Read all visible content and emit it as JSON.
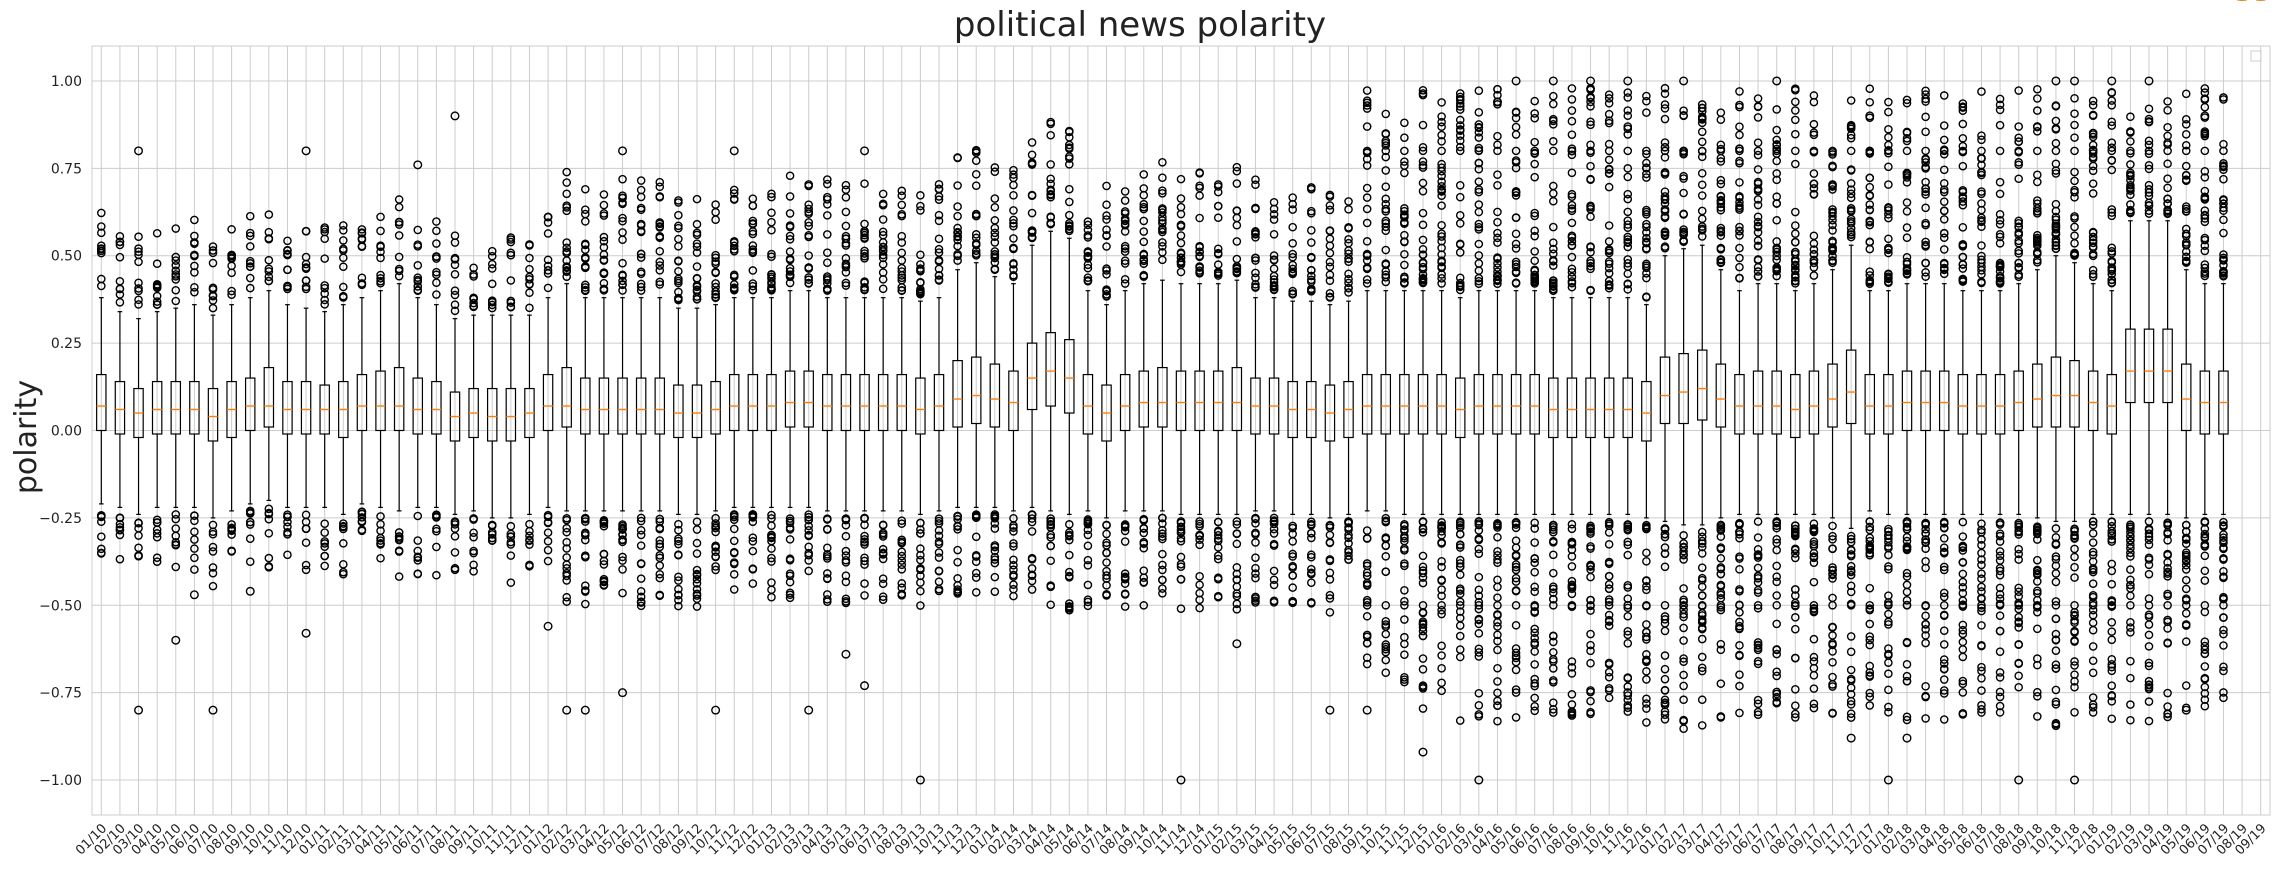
{
  "chart_data": {
    "type": "box",
    "title": "political news polarity",
    "xlabel": "",
    "ylabel": "polarity",
    "ylim": [
      -1.1,
      1.1
    ],
    "yticks": [
      1.0,
      0.75,
      0.5,
      0.25,
      0.0,
      -0.25,
      -0.5,
      -0.75,
      -1.0
    ],
    "ytick_labels": [
      "1.00",
      "0.75",
      "0.50",
      "0.25",
      "0.00",
      "−0.25",
      "−0.50",
      "−0.75",
      "−1.00"
    ],
    "grid": true,
    "legend": "top-right (empty)",
    "categories": [
      "01/10",
      "02/10",
      "03/10",
      "04/10",
      "05/10",
      "06/10",
      "07/10",
      "08/10",
      "09/10",
      "10/10",
      "11/10",
      "12/10",
      "01/11",
      "02/11",
      "03/11",
      "04/11",
      "05/11",
      "06/11",
      "07/11",
      "08/11",
      "09/11",
      "10/11",
      "11/11",
      "12/11",
      "01/12",
      "02/12",
      "03/12",
      "04/12",
      "05/12",
      "06/12",
      "07/12",
      "08/12",
      "09/12",
      "10/12",
      "11/12",
      "12/12",
      "01/13",
      "02/13",
      "03/13",
      "04/13",
      "05/13",
      "06/13",
      "07/13",
      "08/13",
      "09/13",
      "10/13",
      "11/13",
      "12/13",
      "01/14",
      "02/14",
      "03/14",
      "04/14",
      "05/14",
      "06/14",
      "07/14",
      "08/14",
      "09/14",
      "10/14",
      "11/14",
      "12/14",
      "01/15",
      "02/15",
      "03/15",
      "04/15",
      "05/15",
      "06/15",
      "07/15",
      "08/15",
      "09/15",
      "10/15",
      "11/15",
      "12/15",
      "01/16",
      "02/16",
      "03/16",
      "04/16",
      "05/16",
      "06/16",
      "07/16",
      "08/16",
      "09/16",
      "10/16",
      "11/16",
      "12/16",
      "01/17",
      "02/17",
      "03/17",
      "04/17",
      "05/17",
      "06/17",
      "07/17",
      "08/17",
      "09/17",
      "10/17",
      "11/17",
      "12/17",
      "01/18",
      "02/18",
      "03/18",
      "04/18",
      "05/18",
      "06/18",
      "07/18",
      "08/18",
      "09/18",
      "10/18",
      "11/18",
      "12/18",
      "01/19",
      "02/19",
      "03/19",
      "04/19",
      "05/19",
      "06/19",
      "07/19",
      "08/19",
      "09/19"
    ],
    "medians": [
      0.07,
      0.06,
      0.05,
      0.06,
      0.06,
      0.06,
      0.04,
      0.06,
      0.07,
      0.07,
      0.06,
      0.06,
      0.06,
      0.06,
      0.07,
      0.07,
      0.07,
      0.06,
      0.06,
      0.04,
      0.05,
      0.04,
      0.04,
      0.05,
      0.07,
      0.07,
      0.06,
      0.06,
      0.06,
      0.06,
      0.06,
      0.05,
      0.05,
      0.06,
      0.07,
      0.07,
      0.07,
      0.08,
      0.08,
      0.07,
      0.07,
      0.07,
      0.07,
      0.07,
      0.06,
      0.07,
      0.09,
      0.1,
      0.09,
      0.08,
      0.15,
      0.17,
      0.15,
      0.07,
      0.05,
      0.07,
      0.08,
      0.08,
      0.08,
      0.08,
      0.08,
      0.08,
      0.07,
      0.07,
      0.06,
      0.06,
      0.05,
      0.06,
      0.07,
      0.07,
      0.07,
      0.07,
      0.07,
      0.06,
      0.07,
      0.07,
      0.07,
      0.07,
      0.06,
      0.06,
      0.06,
      0.06,
      0.06,
      0.05,
      0.1,
      0.11,
      0.12,
      0.09,
      0.07,
      0.07,
      0.07,
      0.06,
      0.07,
      0.09,
      0.11,
      0.07,
      0.07,
      0.08,
      0.08,
      0.08,
      0.07,
      0.07,
      0.07,
      0.08,
      0.09,
      0.1,
      0.1,
      0.08,
      0.07,
      0.17,
      0.17,
      0.17,
      0.09,
      0.08,
      0.08
    ],
    "q1": [
      0.0,
      -0.01,
      -0.02,
      -0.01,
      -0.01,
      -0.01,
      -0.03,
      -0.02,
      0.0,
      0.01,
      -0.01,
      -0.01,
      -0.01,
      -0.02,
      0.0,
      0.0,
      0.0,
      -0.01,
      -0.01,
      -0.03,
      -0.02,
      -0.03,
      -0.03,
      -0.02,
      0.0,
      0.01,
      -0.01,
      -0.01,
      -0.01,
      -0.01,
      -0.01,
      -0.02,
      -0.02,
      -0.01,
      0.0,
      0.0,
      0.0,
      0.01,
      0.01,
      0.0,
      0.0,
      0.0,
      0.0,
      0.0,
      -0.01,
      0.0,
      0.01,
      0.02,
      0.01,
      0.0,
      0.06,
      0.07,
      0.05,
      -0.01,
      -0.03,
      0.0,
      0.01,
      0.01,
      0.0,
      0.0,
      0.0,
      0.0,
      -0.01,
      -0.01,
      -0.02,
      -0.02,
      -0.03,
      -0.02,
      -0.01,
      -0.01,
      -0.01,
      -0.01,
      -0.01,
      -0.02,
      -0.01,
      -0.01,
      -0.01,
      -0.01,
      -0.02,
      -0.02,
      -0.02,
      -0.02,
      -0.02,
      -0.03,
      0.02,
      0.02,
      0.03,
      0.01,
      -0.01,
      -0.01,
      -0.01,
      -0.02,
      -0.01,
      0.01,
      0.02,
      -0.01,
      -0.01,
      0.0,
      0.0,
      0.0,
      -0.01,
      -0.01,
      -0.01,
      0.0,
      0.01,
      0.01,
      0.01,
      0.0,
      -0.01,
      0.08,
      0.08,
      0.08,
      0.0,
      -0.01,
      -0.01
    ],
    "q3": [
      0.16,
      0.14,
      0.12,
      0.14,
      0.14,
      0.14,
      0.12,
      0.14,
      0.15,
      0.18,
      0.14,
      0.14,
      0.13,
      0.14,
      0.16,
      0.17,
      0.18,
      0.15,
      0.14,
      0.11,
      0.12,
      0.12,
      0.12,
      0.12,
      0.16,
      0.18,
      0.15,
      0.15,
      0.15,
      0.15,
      0.15,
      0.13,
      0.13,
      0.14,
      0.16,
      0.16,
      0.16,
      0.17,
      0.17,
      0.16,
      0.16,
      0.16,
      0.16,
      0.16,
      0.15,
      0.16,
      0.2,
      0.21,
      0.19,
      0.17,
      0.25,
      0.28,
      0.26,
      0.16,
      0.13,
      0.16,
      0.17,
      0.18,
      0.17,
      0.17,
      0.17,
      0.18,
      0.15,
      0.15,
      0.14,
      0.14,
      0.13,
      0.14,
      0.16,
      0.16,
      0.16,
      0.16,
      0.16,
      0.15,
      0.16,
      0.16,
      0.16,
      0.16,
      0.15,
      0.15,
      0.15,
      0.15,
      0.15,
      0.14,
      0.21,
      0.22,
      0.23,
      0.19,
      0.16,
      0.17,
      0.17,
      0.16,
      0.17,
      0.19,
      0.23,
      0.16,
      0.16,
      0.17,
      0.17,
      0.17,
      0.16,
      0.16,
      0.16,
      0.17,
      0.19,
      0.21,
      0.2,
      0.17,
      0.16,
      0.29,
      0.29,
      0.29,
      0.19,
      0.17,
      0.17
    ],
    "whisker_low": [
      -0.21,
      -0.22,
      -0.24,
      -0.22,
      -0.22,
      -0.22,
      -0.25,
      -0.23,
      -0.21,
      -0.2,
      -0.22,
      -0.22,
      -0.22,
      -0.24,
      -0.21,
      -0.22,
      -0.23,
      -0.22,
      -0.22,
      -0.24,
      -0.23,
      -0.25,
      -0.25,
      -0.24,
      -0.22,
      -0.23,
      -0.23,
      -0.23,
      -0.23,
      -0.23,
      -0.23,
      -0.24,
      -0.24,
      -0.23,
      -0.22,
      -0.22,
      -0.22,
      -0.22,
      -0.22,
      -0.23,
      -0.23,
      -0.23,
      -0.23,
      -0.23,
      -0.24,
      -0.23,
      -0.22,
      -0.22,
      -0.22,
      -0.23,
      -0.22,
      -0.23,
      -0.24,
      -0.23,
      -0.25,
      -0.23,
      -0.23,
      -0.23,
      -0.24,
      -0.24,
      -0.24,
      -0.24,
      -0.23,
      -0.23,
      -0.24,
      -0.24,
      -0.25,
      -0.24,
      -0.23,
      -0.23,
      -0.24,
      -0.24,
      -0.24,
      -0.24,
      -0.24,
      -0.24,
      -0.24,
      -0.24,
      -0.24,
      -0.24,
      -0.24,
      -0.24,
      -0.24,
      -0.25,
      -0.26,
      -0.27,
      -0.27,
      -0.25,
      -0.24,
      -0.24,
      -0.24,
      -0.24,
      -0.24,
      -0.25,
      -0.28,
      -0.23,
      -0.24,
      -0.24,
      -0.24,
      -0.24,
      -0.24,
      -0.24,
      -0.24,
      -0.24,
      -0.25,
      -0.26,
      -0.26,
      -0.24,
      -0.24,
      -0.24,
      -0.24,
      -0.24,
      -0.25,
      -0.24,
      -0.24
    ],
    "whisker_high": [
      0.38,
      0.34,
      0.32,
      0.34,
      0.35,
      0.36,
      0.33,
      0.36,
      0.38,
      0.4,
      0.36,
      0.35,
      0.34,
      0.36,
      0.38,
      0.4,
      0.42,
      0.38,
      0.36,
      0.32,
      0.33,
      0.33,
      0.33,
      0.33,
      0.38,
      0.42,
      0.38,
      0.38,
      0.38,
      0.38,
      0.38,
      0.35,
      0.35,
      0.36,
      0.38,
      0.38,
      0.38,
      0.4,
      0.4,
      0.38,
      0.38,
      0.38,
      0.38,
      0.38,
      0.37,
      0.38,
      0.46,
      0.48,
      0.44,
      0.42,
      0.53,
      0.57,
      0.55,
      0.4,
      0.36,
      0.4,
      0.42,
      0.43,
      0.42,
      0.42,
      0.42,
      0.43,
      0.38,
      0.38,
      0.37,
      0.37,
      0.36,
      0.37,
      0.4,
      0.4,
      0.4,
      0.4,
      0.4,
      0.38,
      0.4,
      0.4,
      0.4,
      0.4,
      0.38,
      0.38,
      0.38,
      0.38,
      0.38,
      0.36,
      0.5,
      0.52,
      0.53,
      0.46,
      0.4,
      0.42,
      0.42,
      0.4,
      0.42,
      0.46,
      0.53,
      0.4,
      0.4,
      0.42,
      0.42,
      0.42,
      0.4,
      0.4,
      0.4,
      0.42,
      0.46,
      0.5,
      0.48,
      0.42,
      0.4,
      0.6,
      0.6,
      0.6,
      0.46,
      0.42,
      0.42
    ],
    "outlier_density": [
      1,
      1,
      1,
      1,
      1,
      1,
      1,
      1,
      1,
      1,
      1,
      1,
      1,
      1,
      1,
      1,
      1,
      1,
      1,
      1,
      1,
      1,
      1,
      1,
      1,
      2,
      2,
      2,
      2,
      2,
      2,
      2,
      2,
      2,
      2,
      2,
      2,
      2,
      2,
      2,
      2,
      2,
      2,
      2,
      2,
      2,
      2,
      2,
      2,
      2,
      2,
      2,
      2,
      2,
      2,
      2,
      2,
      2,
      2,
      2,
      2,
      2,
      2,
      2,
      2,
      2,
      2,
      2,
      3,
      3,
      3,
      4,
      4,
      4,
      4,
      4,
      4,
      4,
      4,
      4,
      4,
      4,
      4,
      4,
      4,
      4,
      4,
      4,
      4,
      4,
      4,
      4,
      4,
      4,
      4,
      4,
      4,
      4,
      4,
      4,
      4,
      4,
      4,
      4,
      4,
      4,
      4,
      4,
      4,
      4,
      4,
      4,
      4,
      4,
      4
    ],
    "extreme_outliers": [
      {
        "category": "03/10",
        "y": -0.8
      },
      {
        "category": "03/10",
        "y": 0.8
      },
      {
        "category": "05/10",
        "y": -0.6
      },
      {
        "category": "06/10",
        "y": -0.47
      },
      {
        "category": "07/10",
        "y": -0.8
      },
      {
        "category": "09/10",
        "y": -0.46
      },
      {
        "category": "12/10",
        "y": -0.58
      },
      {
        "category": "12/10",
        "y": 0.8
      },
      {
        "category": "06/11",
        "y": 0.76
      },
      {
        "category": "08/11",
        "y": 0.9
      },
      {
        "category": "01/12",
        "y": -0.56
      },
      {
        "category": "02/12",
        "y": -0.8
      },
      {
        "category": "03/12",
        "y": -0.8
      },
      {
        "category": "05/12",
        "y": -0.75
      },
      {
        "category": "05/12",
        "y": 0.8
      },
      {
        "category": "10/12",
        "y": -0.8
      },
      {
        "category": "11/12",
        "y": 0.8
      },
      {
        "category": "03/13",
        "y": -0.8
      },
      {
        "category": "05/13",
        "y": -0.64
      },
      {
        "category": "06/13",
        "y": -0.73
      },
      {
        "category": "06/13",
        "y": 0.8
      },
      {
        "category": "09/13",
        "y": -1.0
      },
      {
        "category": "11/14",
        "y": -1.0
      },
      {
        "category": "02/15",
        "y": -0.61
      },
      {
        "category": "07/15",
        "y": -0.8
      },
      {
        "category": "09/15",
        "y": -0.8
      },
      {
        "category": "12/15",
        "y": -0.92
      },
      {
        "category": "03/16",
        "y": -1.0
      },
      {
        "category": "04/16",
        "y": 0.94
      },
      {
        "category": "05/16",
        "y": 1.0
      },
      {
        "category": "07/16",
        "y": 1.0
      },
      {
        "category": "09/16",
        "y": 1.0
      },
      {
        "category": "11/16",
        "y": 1.0
      },
      {
        "category": "11/16",
        "y": -0.75
      },
      {
        "category": "02/17",
        "y": 1.0
      },
      {
        "category": "07/17",
        "y": 1.0
      },
      {
        "category": "11/17",
        "y": -0.88
      },
      {
        "category": "12/17",
        "y": 0.9
      },
      {
        "category": "01/18",
        "y": -1.0
      },
      {
        "category": "02/18",
        "y": -0.88
      },
      {
        "category": "08/18",
        "y": -1.0
      },
      {
        "category": "10/18",
        "y": 1.0
      },
      {
        "category": "11/18",
        "y": -1.0
      },
      {
        "category": "11/18",
        "y": 1.0
      },
      {
        "category": "01/19",
        "y": 1.0
      },
      {
        "category": "03/19",
        "y": 1.0
      },
      {
        "category": "05/19",
        "y": -0.8
      },
      {
        "category": "06/19",
        "y": 0.9
      }
    ]
  },
  "colors": {
    "median": "#ff7f0e",
    "box": "#000000",
    "grid": "#cccccc",
    "background": "#ffffff"
  }
}
